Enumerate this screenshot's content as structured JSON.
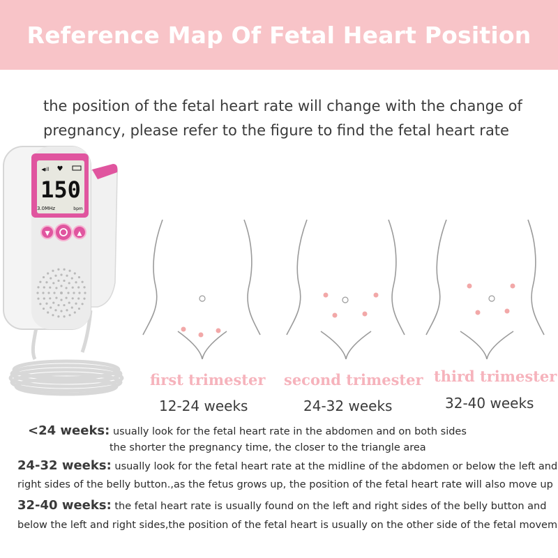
{
  "header": {
    "title": "Reference Map Of Fetal Heart Position"
  },
  "intro": {
    "line1": "the position of the fetal heart rate will change with the change of",
    "line2": "pregnancy, please refer to the figure to find the fetal heart rate"
  },
  "device": {
    "screen_value": "150",
    "screen_unit": "bpm",
    "screen_freq": "3.0MHz",
    "accent_color": "#e0559f"
  },
  "trimesters": [
    {
      "label": "first trimester",
      "weeks": "12-24 weeks"
    },
    {
      "label": "second trimester",
      "weeks": "24-32 weeks"
    },
    {
      "label": "third trimester",
      "weeks": "32-40 weeks"
    }
  ],
  "notes": [
    {
      "heading": "<24 weeks:",
      "text": "usually look for the fetal heart rate in the abdomen and on both sides",
      "continuation": "the shorter the pregnancy time, the closer to the triangle area"
    },
    {
      "heading": "24-32 weeks:",
      "text": "usually look for the fetal heart rate at the midline of the abdomen or below the left and",
      "continuation": "right sides of the belly button.,as the fetus grows up, the position of the fetal heart rate will also move up"
    },
    {
      "heading": "32-40 weeks:",
      "text": "the fetal heart rate is usually found on the left and right sides of the belly button and",
      "continuation": "below the left and right sides,the position of the fetal heart is usually on the other side of the fetal movement"
    }
  ],
  "colors": {
    "banner": "#f8c4c8",
    "trimester_label": "#f6b3bc",
    "dot": "#f2a8a8"
  }
}
